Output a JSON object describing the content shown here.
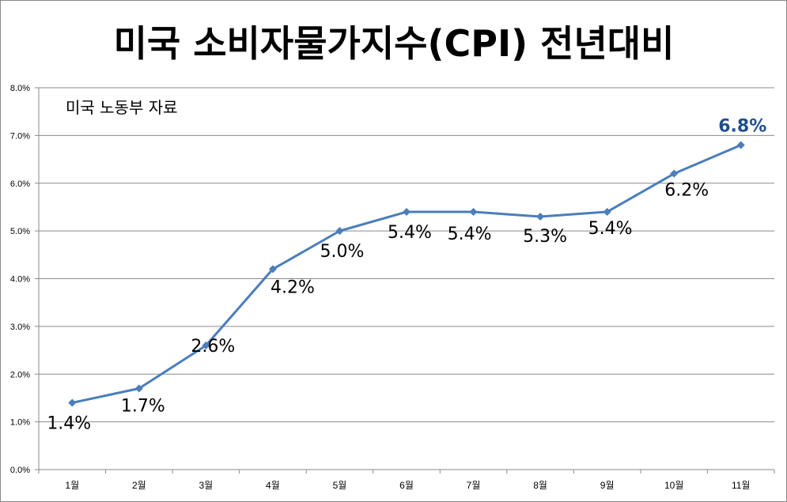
{
  "chart_data": {
    "type": "line",
    "title": "미국 소비자물가지수(CPI) 전년대비",
    "annotation": "미국 노동부 자료",
    "categories": [
      "1월",
      "2월",
      "3월",
      "4월",
      "5월",
      "6월",
      "7월",
      "8월",
      "9월",
      "10월",
      "11월"
    ],
    "series": [
      {
        "values": [
          1.4,
          1.7,
          2.6,
          4.2,
          5.0,
          5.4,
          5.4,
          5.3,
          5.4,
          6.2,
          6.8
        ],
        "data_labels": [
          "1.4%",
          "1.7%",
          "2.6%",
          "4.2%",
          "5.0%",
          "5.4%",
          "5.4%",
          "5.3%",
          "5.4%",
          "6.2%",
          "6.8%"
        ],
        "color": "#4a7ebb"
      }
    ],
    "y_ticks": [
      "0.0%",
      "1.0%",
      "2.0%",
      "3.0%",
      "4.0%",
      "5.0%",
      "6.0%",
      "7.0%",
      "8.0%"
    ],
    "ylim": [
      0,
      8
    ],
    "grid": true,
    "legend": "none",
    "highlight_label_color": "#1f4e8c"
  }
}
